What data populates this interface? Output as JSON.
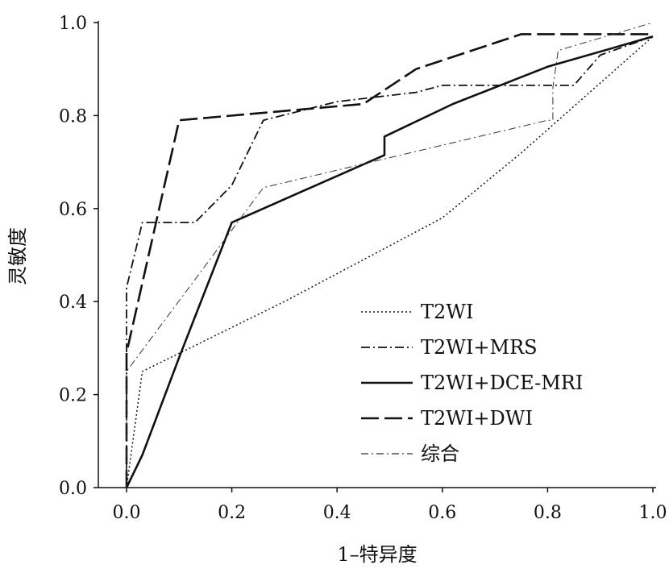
{
  "chart_data": {
    "type": "line",
    "title": "",
    "xlabel": "1–特异度",
    "ylabel": "灵敏度",
    "xlim": [
      0,
      1
    ],
    "ylim": [
      0,
      1
    ],
    "xticks": [
      "0.0",
      "0.2",
      "0.4",
      "0.6",
      "0.8",
      "1.0"
    ],
    "yticks": [
      "0.0",
      "0.2",
      "0.4",
      "0.6",
      "0.8",
      "1.0"
    ],
    "grid": false,
    "legend_position": "bottom-right",
    "series": [
      {
        "name": "T2WI",
        "style": "dotted",
        "width": 1.5,
        "points": [
          [
            0,
            0
          ],
          [
            0.03,
            0.25
          ],
          [
            0.3,
            0.4
          ],
          [
            0.6,
            0.58
          ],
          [
            0.75,
            0.72
          ],
          [
            0.9,
            0.87
          ],
          [
            1.0,
            0.97
          ]
        ]
      },
      {
        "name": "T2WI+MRS",
        "style": "dashdot",
        "width": 1.8,
        "points": [
          [
            0,
            0
          ],
          [
            0,
            0.43
          ],
          [
            0.03,
            0.57
          ],
          [
            0.13,
            0.57
          ],
          [
            0.2,
            0.65
          ],
          [
            0.26,
            0.79
          ],
          [
            0.4,
            0.83
          ],
          [
            0.55,
            0.85
          ],
          [
            0.6,
            0.865
          ],
          [
            0.85,
            0.865
          ],
          [
            0.9,
            0.93
          ],
          [
            1.0,
            0.97
          ]
        ]
      },
      {
        "name": "T2WI+DCE-MRI",
        "style": "solid",
        "width": 2.6,
        "points": [
          [
            0,
            0
          ],
          [
            0.03,
            0.07
          ],
          [
            0.1,
            0.28
          ],
          [
            0.2,
            0.57
          ],
          [
            0.35,
            0.645
          ],
          [
            0.49,
            0.715
          ],
          [
            0.49,
            0.755
          ],
          [
            0.62,
            0.825
          ],
          [
            0.8,
            0.905
          ],
          [
            1.0,
            0.97
          ]
        ]
      },
      {
        "name": "T2WI+DWI",
        "style": "longdash",
        "width": 2.6,
        "points": [
          [
            0,
            0
          ],
          [
            0,
            0.29
          ],
          [
            0.1,
            0.79
          ],
          [
            0.45,
            0.825
          ],
          [
            0.55,
            0.9
          ],
          [
            0.75,
            0.975
          ],
          [
            1.0,
            0.975
          ]
        ]
      },
      {
        "name": "综合",
        "style": "thindashdot",
        "width": 1.0,
        "points": [
          [
            0,
            0
          ],
          [
            0,
            0.25
          ],
          [
            0.26,
            0.645
          ],
          [
            0.8,
            0.79
          ],
          [
            0.81,
            0.79
          ],
          [
            0.81,
            0.86
          ],
          [
            0.82,
            0.94
          ],
          [
            1.0,
            1.0
          ]
        ]
      }
    ]
  }
}
